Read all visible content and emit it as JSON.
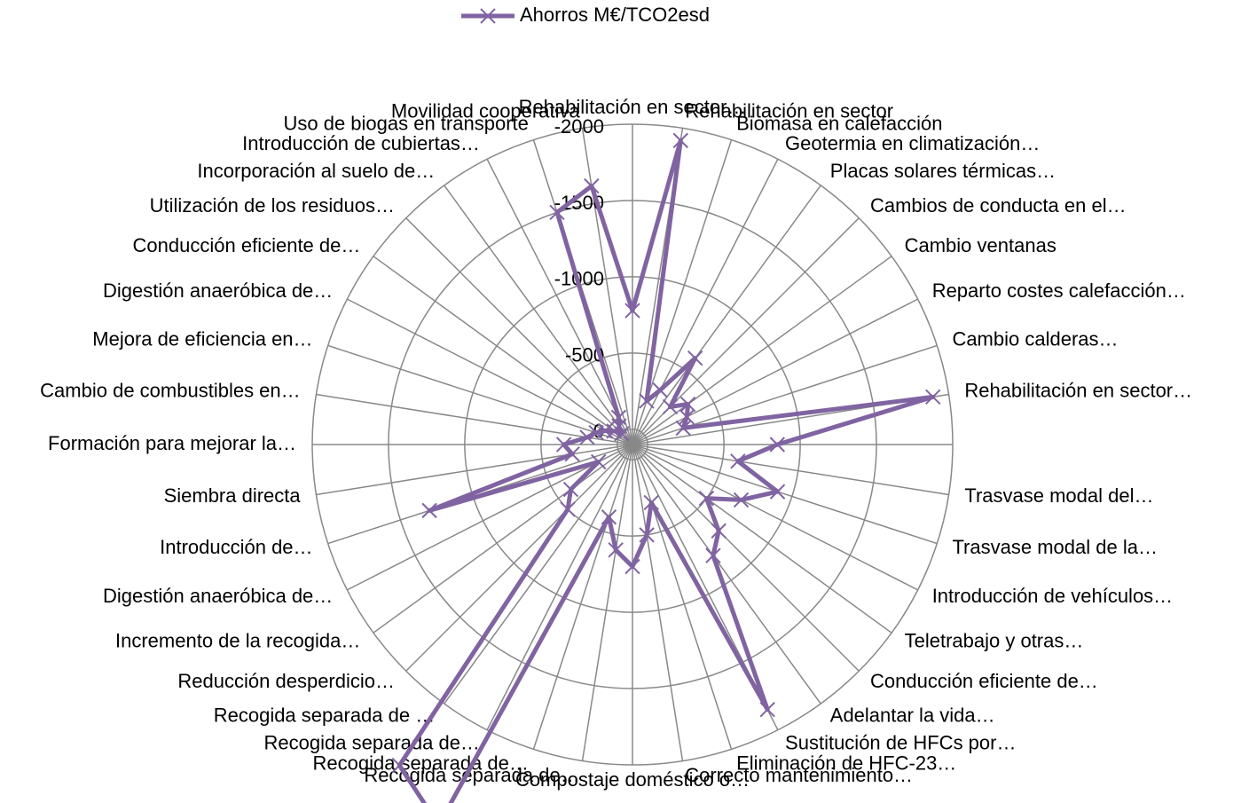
{
  "chart_data": {
    "type": "radar",
    "categories": [
      "Rehabilitación en sector…",
      "Rehabilitación en sector",
      "Biomasa en calefacción",
      "Geotermia en climatización…",
      "Placas solares térmicas…",
      "Cambios de conducta en el…",
      "Cambio ventanas",
      "Reparto costes calefacción…",
      "Cambio calderas…",
      "Rehabilitación en sector…",
      null,
      "Trasvase modal  del…",
      "Trasvase modal  de la…",
      "Introducción de vehículos…",
      "Teletrabajo y otras…",
      "Conducción eficiente de…",
      "Adelantar la vida…",
      "Sustitución de HFCs por…",
      "Eliminación de HFC-23…",
      "Correcto mantenimiento…",
      "Compostaje doméstico o…",
      "Recogida separada de…",
      "Recogida separada de…",
      "Recogida separada de…",
      "Recogida separada de …",
      "Reducción desperdicio…",
      "Incremento de la recogida…",
      "Digestión anaeróbica de…",
      "Introducción de…",
      "Siembra directa",
      "Formación para mejorar la…",
      "Cambio de combustibles en…",
      "Mejora de eficiencia en…",
      "Digestión anaeróbica de…",
      "Conducción eficiente de…",
      "Utilización de los residuos…",
      "Incorporación al suelo de…",
      "Introducción de cubiertas…",
      "Uso de biogas en transporte",
      "Movilidad cooperativa"
    ],
    "series": [
      {
        "name": "Ahorros M€/TCO2esd",
        "color": "#8064a2",
        "values": [
          -778,
          -1918,
          -200,
          -300,
          -600,
          -250,
          -350,
          -300,
          -250,
          -1895,
          -850,
          -600,
          -900,
          -700,
          -500,
          -700,
          -800,
          -1850,
          -300,
          -500,
          -700,
          -600,
          -400,
          -2700,
          -2500,
          -500,
          -400,
          -150,
          -1300,
          -300,
          -350,
          -200,
          -150,
          -100,
          -50,
          0,
          -50,
          -100,
          -1500,
          -1616
        ]
      }
    ],
    "ylim": [
      100,
      -2000
    ],
    "yticks": [
      0,
      -500,
      -1000,
      -1500,
      -2000
    ],
    "grid": true,
    "legend": "top"
  }
}
